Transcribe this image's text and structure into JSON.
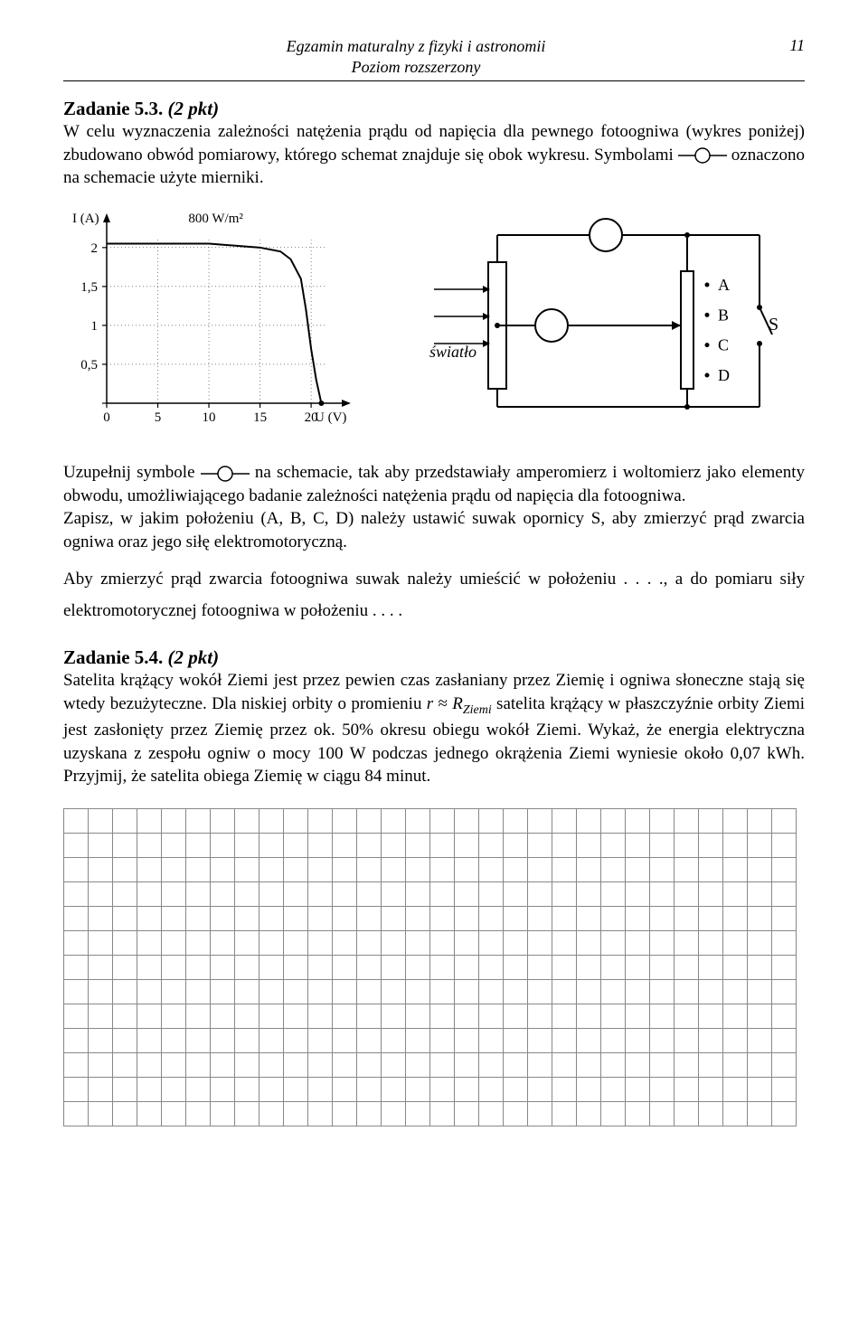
{
  "header": {
    "line1": "Egzamin maturalny z fizyki i astronomii",
    "line2": "Poziom rozszerzony",
    "page": "11"
  },
  "task53": {
    "title": "Zadanie 5.3.",
    "pts": "(2 pkt)",
    "para1a": "W celu wyznaczenia zależności natężenia prądu od napięcia dla pewnego fotoogniwa (wykres poniżej) zbudowano obwód pomiarowy, którego schemat znajduje się obok wykresu. Symbolami ",
    "para1b": " oznaczono na schemacie użyte mierniki.",
    "para2a": "Uzupełnij symbole ",
    "para2b": " na schemacie, tak aby przedstawiały amperomierz i woltomierz jako elementy obwodu, umożliwiającego badanie zależności natężenia prądu od napięcia dla fotoogniwa.",
    "para3": "Zapisz, w jakim położeniu (A, B, C, D) należy ustawić suwak opornicy S, aby zmierzyć prąd zwarcia ogniwa oraz jego siłę elektromotoryczną.",
    "fill1": "Aby zmierzyć prąd zwarcia fotoogniwa suwak należy umieścić w położeniu . . . ., a do pomiaru siły elektromotorycznej fotoogniwa w położeniu . . . ."
  },
  "chart": {
    "type": "line",
    "x": [
      0,
      5,
      10,
      15,
      17,
      18,
      19,
      19.5,
      20,
      20.5,
      21
    ],
    "y": [
      2.05,
      2.05,
      2.05,
      2.0,
      1.95,
      1.85,
      1.6,
      1.2,
      0.7,
      0.3,
      0.0
    ],
    "xlabel": "U (V)",
    "ylabel": "I (A)",
    "annotation": "800 W/m²",
    "xticks": [
      0,
      5,
      10,
      15,
      20
    ],
    "yticks": [
      0,
      0.5,
      1,
      1.5,
      2
    ],
    "ytick_labels": [
      "0",
      "0,5",
      "1",
      "1,5",
      "2"
    ],
    "xlim": [
      0,
      23
    ],
    "ylim": [
      0,
      2.3
    ],
    "line_color": "#000000",
    "line_width": 2,
    "grid_color": "#000000",
    "axis_color": "#000000",
    "font_size": 15
  },
  "circuit": {
    "type": "diagram",
    "light_label": "światło",
    "switch_label": "S",
    "positions": [
      "A",
      "B",
      "C",
      "D"
    ],
    "stroke": "#000000",
    "stroke_width": 2,
    "font_size": 18
  },
  "task54": {
    "title": "Zadanie 5.4.",
    "pts": "(2 pkt)",
    "text_a": "Satelita krążący wokół Ziemi jest przez pewien czas zasłaniany przez Ziemię i ogniwa słoneczne stają się wtedy bezużyteczne. Dla niskiej orbity o promieniu ",
    "text_b": " satelita krążący w płaszczyźnie orbity Ziemi jest zasłonięty przez Ziemię przez ok. 50% okresu obiegu wokół Ziemi. Wykaż, że energia elektryczna uzyskana z zespołu ogniw o mocy 100 W podczas jednego okrążenia Ziemi wyniesie około 0,07 kWh. Przyjmij, że satelita obiega Ziemię w ciągu 84 minut.",
    "r_expr_r": "r",
    "r_expr_approx": " ≈ ",
    "r_expr_R": "R",
    "r_expr_sub": "Ziemi"
  },
  "grid": {
    "rows": 13,
    "cols": 30,
    "cell_size": 27,
    "border_color": "#888888"
  }
}
